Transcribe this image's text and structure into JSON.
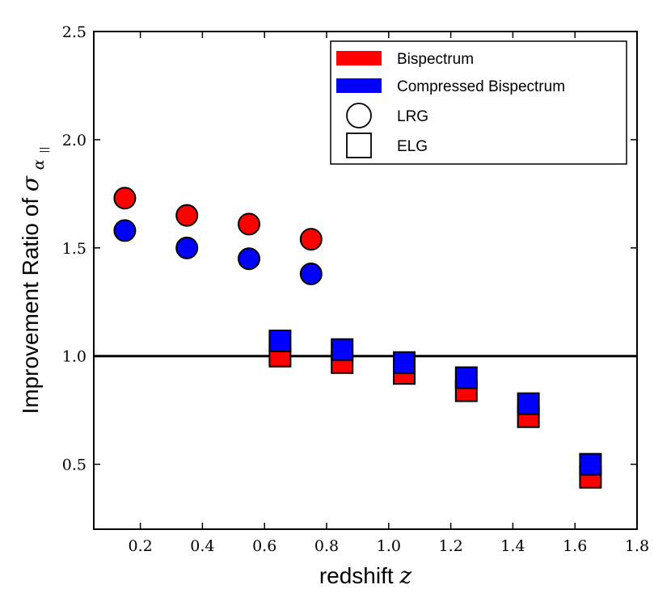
{
  "chart_data": {
    "type": "scatter",
    "title": "",
    "xlabel": "redshift",
    "xlabel_var": "z",
    "ylabel": "Improvement Ratio of",
    "ylabel_symbol": "σ",
    "ylabel_subscript": "α",
    "ylabel_subsubscript": "||",
    "xlim": [
      0.05,
      1.8
    ],
    "ylim": [
      0.2,
      2.5
    ],
    "xticks": [
      0.2,
      0.4,
      0.6,
      0.8,
      1.0,
      1.2,
      1.4,
      1.6,
      1.8
    ],
    "xtick_labels": [
      "0.2",
      "0.4",
      "0.6",
      "0.8",
      "1.0",
      "1.2",
      "1.4",
      "1.6",
      "1.8"
    ],
    "yticks": [
      0.5,
      1.0,
      1.5,
      2.0,
      2.5
    ],
    "ytick_labels": [
      "0.5",
      "1.0",
      "1.5",
      "2.0",
      "2.5"
    ],
    "reference_line_y": 1.0,
    "grid": false,
    "legend_position": "top-right",
    "colors": {
      "bispectrum": "#ff0000",
      "compressed": "#0000ff",
      "edge": "#000000"
    },
    "legend": [
      {
        "label": "Bispectrum",
        "kind": "color",
        "color": "#ff0000"
      },
      {
        "label": "Compressed Bispectrum",
        "kind": "color",
        "color": "#0000ff"
      },
      {
        "label": "LRG",
        "kind": "marker",
        "marker": "circle"
      },
      {
        "label": "ELG",
        "kind": "marker",
        "marker": "square"
      }
    ],
    "series": [
      {
        "name": "Bispectrum LRG",
        "marker": "circle",
        "color": "#ff0000",
        "x": [
          0.15,
          0.35,
          0.55,
          0.75
        ],
        "y": [
          1.73,
          1.65,
          1.61,
          1.54
        ]
      },
      {
        "name": "Compressed Bispectrum LRG",
        "marker": "circle",
        "color": "#0000ff",
        "x": [
          0.15,
          0.35,
          0.55,
          0.75
        ],
        "y": [
          1.58,
          1.5,
          1.45,
          1.38
        ]
      },
      {
        "name": "Bispectrum ELG",
        "marker": "square",
        "color": "#ff0000",
        "x": [
          0.65,
          0.85,
          1.05,
          1.25,
          1.45,
          1.65
        ],
        "y": [
          1.0,
          0.97,
          0.92,
          0.84,
          0.72,
          0.44
        ]
      },
      {
        "name": "Compressed Bispectrum ELG",
        "marker": "square",
        "color": "#0000ff",
        "x": [
          0.65,
          0.85,
          1.05,
          1.25,
          1.45,
          1.65
        ],
        "y": [
          1.07,
          1.03,
          0.97,
          0.9,
          0.78,
          0.5
        ]
      }
    ]
  }
}
